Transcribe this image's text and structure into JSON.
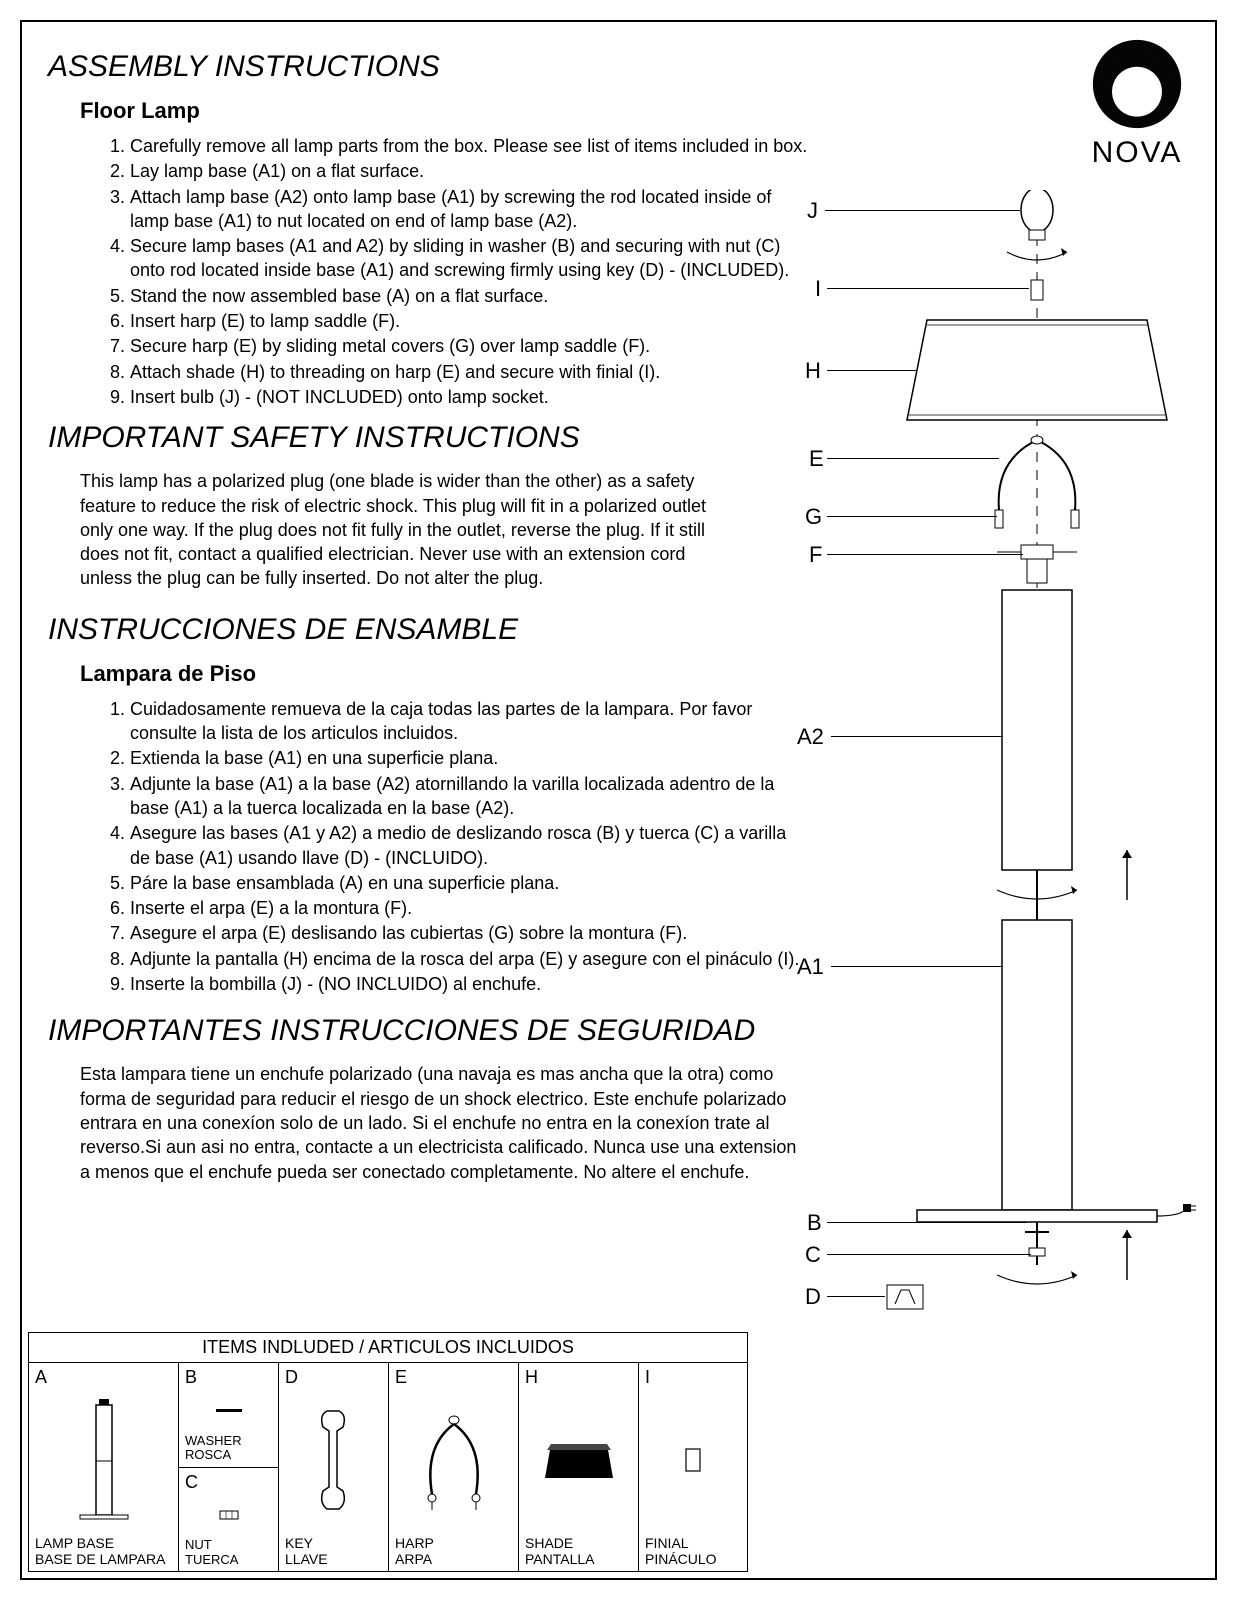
{
  "logo_text": "NOVA",
  "en": {
    "title": "ASSEMBLY INSTRUCTIONS",
    "subtitle": "Floor Lamp",
    "steps": [
      "Carefully remove all lamp parts from the box. Please see list of items included in box.",
      "Lay lamp base (A1) on a flat surface.",
      "Attach lamp base (A2) onto lamp base (A1) by screwing the rod located inside of lamp base (A1) to nut located on end of lamp base (A2).",
      "Secure lamp bases (A1 and A2) by sliding in washer (B) and securing with nut (C) onto rod located inside base (A1) and screwing firmly using key (D) - (INCLUDED).",
      "Stand the now assembled base (A) on a flat surface.",
      "Insert harp (E) to lamp saddle (F).",
      "Secure harp (E) by sliding metal covers (G) over lamp saddle (F).",
      "Attach shade (H) to threading on harp (E) and secure with finial (I).",
      "Insert bulb (J) - (NOT INCLUDED) onto lamp socket."
    ],
    "safety_title": "IMPORTANT SAFETY INSTRUCTIONS",
    "safety_text": "This lamp has a polarized plug (one blade is wider than the other) as a safety feature to reduce the risk of electric shock. This plug will fit in a polarized outlet only one way.  If the plug does not fit fully in the outlet, reverse the plug. If it still does not fit, contact a qualified electrician. Never use with an extension cord unless the plug can be fully inserted. Do not alter the plug."
  },
  "es": {
    "title": "INSTRUCCIONES DE ENSAMBLE",
    "subtitle": "Lampara de Piso",
    "steps": [
      "Cuidadosamente remueva de la caja todas las partes de la lampara. Por favor consulte la lista de los articulos incluidos.",
      "Extienda la base (A1) en una superficie plana.",
      "Adjunte la base (A1)  a la base (A2) atornillando la varilla localizada adentro de la base (A1) a la tuerca localizada en la base (A2).",
      "Asegure las bases (A1 y A2) a medio de deslizando rosca (B) y tuerca (C) a varilla de base (A1) usando llave (D) - (INCLUIDO).",
      "Páre la base ensamblada (A) en una superficie plana.",
      "Inserte el arpa (E) a la montura (F).",
      "Asegure el arpa (E) deslisando las cubiertas (G) sobre la montura (F).",
      "Adjunte la pantalla (H) encima de la rosca del arpa (E) y asegure con el pináculo (I).",
      "Inserte la bombilla (J) - (NO INCLUIDO) al enchufe."
    ],
    "safety_title": "IMPORTANTES INSTRUCCIONES DE SEGURIDAD",
    "safety_text": "Esta lampara tiene un enchufe polarizado (una navaja es mas ancha que la otra) como forma de seguridad para reducir el riesgo de un shock electrico. Este enchufe polarizado entrara en una conexíon solo de un lado. Si el enchufe no entra en la conexíon trate al reverso.Si aun asi no entra, contacte a un electricista calificado. Nunca use una extension a menos que el enchufe pueda ser conectado completamente. No altere el enchufe."
  },
  "diagram_labels": {
    "J": "J",
    "I": "I",
    "H": "H",
    "E": "E",
    "G": "G",
    "F": "F",
    "A2": "A2",
    "A1": "A1",
    "B": "B",
    "C": "C",
    "D": "D"
  },
  "items": {
    "header": "ITEMS INDLUDED / ARTICULOS INCLUIDOS",
    "A": {
      "letter": "A",
      "label1": "LAMP BASE",
      "label2": "BASE DE LAMPARA"
    },
    "B": {
      "letter": "B",
      "mid": "WASHER\nROSCA"
    },
    "C": {
      "letter": "C",
      "label1": "NUT",
      "label2": "TUERCA"
    },
    "D": {
      "letter": "D",
      "label1": "KEY",
      "label2": "LLAVE"
    },
    "E": {
      "letter": "E",
      "label1": "HARP",
      "label2": "ARPA"
    },
    "H": {
      "letter": "H",
      "label1": "SHADE",
      "label2": "PANTALLA"
    },
    "I": {
      "letter": "I",
      "label1": "FINIAL",
      "label2": "PINÁCULO"
    }
  },
  "colors": {
    "line": "#000000",
    "bg": "#ffffff"
  }
}
